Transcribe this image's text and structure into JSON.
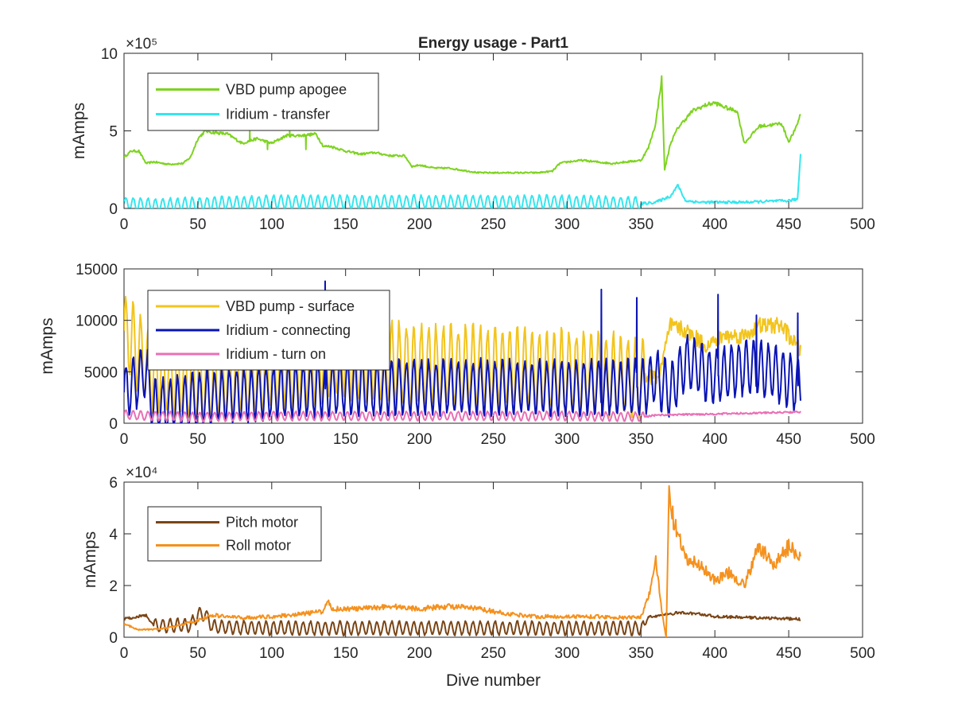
{
  "chart_data": [
    {
      "type": "line",
      "title": "Energy usage - Part1",
      "xlabel": "",
      "ylabel": "mAmps",
      "xlim": [
        0,
        500
      ],
      "ylim": [
        0,
        1000000
      ],
      "exponent_label": "×10⁵",
      "xticks": [
        0,
        50,
        100,
        150,
        200,
        250,
        300,
        350,
        400,
        450,
        500
      ],
      "yticks": [
        0,
        5,
        10
      ],
      "legend_position": "top-left",
      "grid": false,
      "series": [
        {
          "name": "VBD pump apogee",
          "color": "#7ed321",
          "pattern": "smooth",
          "points": [
            [
              0,
              330000
            ],
            [
              5,
              370000
            ],
            [
              10,
              370000
            ],
            [
              15,
              290000
            ],
            [
              20,
              300000
            ],
            [
              30,
              285000
            ],
            [
              40,
              290000
            ],
            [
              45,
              330000
            ],
            [
              50,
              450000
            ],
            [
              55,
              500000
            ],
            [
              60,
              490000
            ],
            [
              70,
              480000
            ],
            [
              80,
              420000
            ],
            [
              90,
              450000
            ],
            [
              100,
              420000
            ],
            [
              110,
              470000
            ],
            [
              120,
              470000
            ],
            [
              130,
              480000
            ],
            [
              135,
              400000
            ],
            [
              140,
              400000
            ],
            [
              150,
              370000
            ],
            [
              160,
              350000
            ],
            [
              170,
              360000
            ],
            [
              180,
              340000
            ],
            [
              190,
              340000
            ],
            [
              195,
              270000
            ],
            [
              200,
              280000
            ],
            [
              210,
              260000
            ],
            [
              220,
              260000
            ],
            [
              240,
              230000
            ],
            [
              260,
              230000
            ],
            [
              280,
              230000
            ],
            [
              290,
              240000
            ],
            [
              295,
              290000
            ],
            [
              300,
              300000
            ],
            [
              310,
              310000
            ],
            [
              320,
              300000
            ],
            [
              330,
              290000
            ],
            [
              340,
              300000
            ],
            [
              350,
              310000
            ],
            [
              355,
              390000
            ],
            [
              360,
              550000
            ],
            [
              364,
              840000
            ],
            [
              366,
              250000
            ],
            [
              370,
              420000
            ],
            [
              375,
              520000
            ],
            [
              385,
              630000
            ],
            [
              395,
              670000
            ],
            [
              400,
              680000
            ],
            [
              410,
              640000
            ],
            [
              415,
              630000
            ],
            [
              420,
              420000
            ],
            [
              430,
              530000
            ],
            [
              440,
              540000
            ],
            [
              445,
              550000
            ],
            [
              450,
              430000
            ],
            [
              455,
              520000
            ],
            [
              458,
              610000
            ]
          ],
          "spikes": [
            [
              62,
              550000
            ],
            [
              85,
              520000
            ],
            [
              97,
              380000
            ],
            [
              112,
              500000
            ],
            [
              123,
              380000
            ]
          ]
        },
        {
          "name": "Iridium - transfer",
          "color": "#34e6ee",
          "pattern": "oscillating",
          "points": [
            [
              0,
              30000
            ],
            [
              20,
              20000
            ],
            [
              60,
              30000
            ],
            [
              100,
              40000
            ],
            [
              150,
              40000
            ],
            [
              200,
              40000
            ],
            [
              250,
              40000
            ],
            [
              300,
              40000
            ],
            [
              350,
              30000
            ],
            [
              360,
              40000
            ],
            [
              370,
              80000
            ],
            [
              375,
              150000
            ],
            [
              380,
              50000
            ],
            [
              390,
              40000
            ],
            [
              400,
              40000
            ],
            [
              420,
              40000
            ],
            [
              450,
              50000
            ],
            [
              456,
              60000
            ],
            [
              458,
              350000
            ]
          ],
          "osc_amp": 50000,
          "osc_range": [
            0,
            350
          ]
        }
      ]
    },
    {
      "type": "line",
      "title": "",
      "xlabel": "",
      "ylabel": "mAmps",
      "xlim": [
        0,
        500
      ],
      "ylim": [
        0,
        15000
      ],
      "xticks": [
        0,
        50,
        100,
        150,
        200,
        250,
        300,
        350,
        400,
        450,
        500
      ],
      "yticks": [
        0,
        5000,
        10000,
        15000
      ],
      "legend_position": "top-left",
      "grid": false,
      "series": [
        {
          "name": "VBD pump - surface",
          "color": "#f2c41d",
          "pattern": "oscillating",
          "points": [
            [
              0,
              9000
            ],
            [
              10,
              7000
            ],
            [
              20,
              5000
            ],
            [
              50,
              4000
            ],
            [
              100,
              5000
            ],
            [
              150,
              6500
            ],
            [
              200,
              5500
            ],
            [
              250,
              5500
            ],
            [
              300,
              5000
            ],
            [
              350,
              4500
            ],
            [
              362,
              4500
            ],
            [
              370,
              9500
            ],
            [
              380,
              9000
            ],
            [
              395,
              7500
            ],
            [
              405,
              8500
            ],
            [
              420,
              8500
            ],
            [
              430,
              9500
            ],
            [
              445,
              9500
            ],
            [
              458,
              7000
            ]
          ],
          "osc_amp": 4500,
          "osc_range": [
            0,
            352
          ]
        },
        {
          "name": "Iridium - connecting",
          "color": "#0a14b4",
          "pattern": "oscillating",
          "points": [
            [
              0,
              3000
            ],
            [
              15,
              5000
            ],
            [
              20,
              1500
            ],
            [
              60,
              2500
            ],
            [
              100,
              3000
            ],
            [
              150,
              3500
            ],
            [
              200,
              3500
            ],
            [
              250,
              3500
            ],
            [
              300,
              3500
            ],
            [
              352,
              3500
            ],
            [
              360,
              4500
            ],
            [
              370,
              3000
            ],
            [
              380,
              6000
            ],
            [
              400,
              4500
            ],
            [
              420,
              5500
            ],
            [
              440,
              5000
            ],
            [
              458,
              3500
            ]
          ],
          "osc_amp": 3000,
          "osc_range": [
            0,
            458
          ],
          "spikes": [
            [
              136,
              13800
            ],
            [
              323,
              13000
            ],
            [
              347,
              12200
            ],
            [
              402,
              12500
            ],
            [
              428,
              10500
            ],
            [
              456,
              10700
            ]
          ]
        },
        {
          "name": "Iridium - turn on",
          "color": "#e870b5",
          "pattern": "oscillating",
          "points": [
            [
              0,
              800
            ],
            [
              50,
              600
            ],
            [
              100,
              700
            ],
            [
              200,
              700
            ],
            [
              300,
              700
            ],
            [
              352,
              600
            ],
            [
              360,
              800
            ],
            [
              400,
              900
            ],
            [
              430,
              1000
            ],
            [
              458,
              1100
            ]
          ],
          "osc_amp": 500,
          "osc_range": [
            0,
            352
          ]
        }
      ]
    },
    {
      "type": "line",
      "title": "",
      "xlabel": "Dive number",
      "ylabel": "mAmps",
      "xlim": [
        0,
        500
      ],
      "ylim": [
        0,
        60000
      ],
      "exponent_label": "×10⁴",
      "xticks": [
        0,
        50,
        100,
        150,
        200,
        250,
        300,
        350,
        400,
        450,
        500
      ],
      "yticks": [
        0,
        2,
        4,
        6
      ],
      "legend_position": "top-left",
      "grid": false,
      "series": [
        {
          "name": "Pitch motor",
          "color": "#7a4516",
          "pattern": "oscillating",
          "points": [
            [
              0,
              7000
            ],
            [
              10,
              8000
            ],
            [
              15,
              8500
            ],
            [
              20,
              4500
            ],
            [
              45,
              4500
            ],
            [
              50,
              9000
            ],
            [
              55,
              9000
            ],
            [
              60,
              4000
            ],
            [
              100,
              3500
            ],
            [
              200,
              3500
            ],
            [
              300,
              3500
            ],
            [
              352,
              3500
            ],
            [
              355,
              8000
            ],
            [
              365,
              8500
            ],
            [
              375,
              9500
            ],
            [
              390,
              9000
            ],
            [
              400,
              8000
            ],
            [
              430,
              7500
            ],
            [
              458,
              7000
            ]
          ],
          "osc_amp": 3000,
          "osc_range": [
            20,
            352
          ]
        },
        {
          "name": "Roll motor",
          "color": "#f5911e",
          "pattern": "noisy",
          "points": [
            [
              0,
              5000
            ],
            [
              10,
              3000
            ],
            [
              20,
              3000
            ],
            [
              30,
              3500
            ],
            [
              50,
              6500
            ],
            [
              60,
              8500
            ],
            [
              80,
              7500
            ],
            [
              100,
              8000
            ],
            [
              120,
              9000
            ],
            [
              135,
              10000
            ],
            [
              138,
              15000
            ],
            [
              140,
              11000
            ],
            [
              160,
              11000
            ],
            [
              180,
              12000
            ],
            [
              200,
              11000
            ],
            [
              220,
              12000
            ],
            [
              240,
              11000
            ],
            [
              260,
              9000
            ],
            [
              280,
              8000
            ],
            [
              300,
              8000
            ],
            [
              320,
              8000
            ],
            [
              340,
              7500
            ],
            [
              350,
              8000
            ],
            [
              355,
              15000
            ],
            [
              360,
              30000
            ],
            [
              364,
              10000
            ],
            [
              367,
              0
            ],
            [
              369,
              55000
            ],
            [
              372,
              45000
            ],
            [
              380,
              30000
            ],
            [
              390,
              28000
            ],
            [
              400,
              22000
            ],
            [
              410,
              25000
            ],
            [
              420,
              20000
            ],
            [
              425,
              28000
            ],
            [
              430,
              35000
            ],
            [
              440,
              28000
            ],
            [
              450,
              35000
            ],
            [
              458,
              32000
            ]
          ]
        }
      ]
    }
  ]
}
